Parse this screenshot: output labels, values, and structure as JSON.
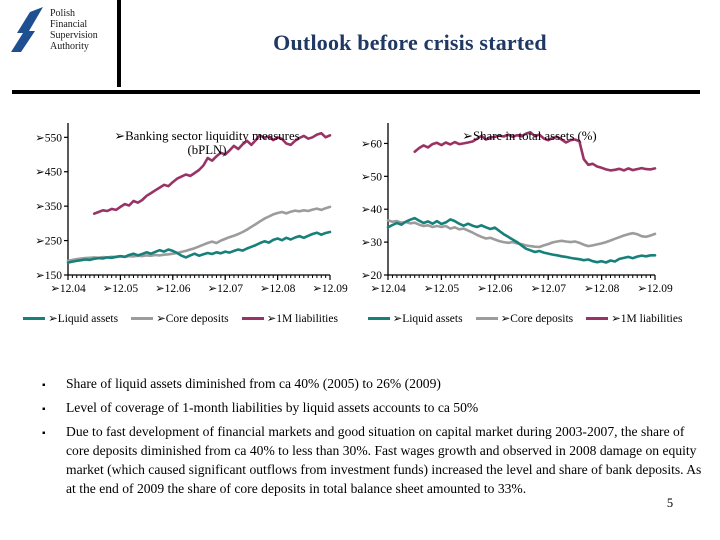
{
  "header": {
    "logo_text": [
      "Polish",
      "Financial",
      "Supervision",
      "Authority"
    ],
    "title": "Outlook before crisis started",
    "title_color": "#1f3864",
    "logo_color": "#1d4f91"
  },
  "legend": {
    "items": [
      {
        "label": "➢Liquid assets",
        "color": "#17807a"
      },
      {
        "label": "➢Core deposits",
        "color": "#9c9c9c"
      },
      {
        "label": "➢1M liabilities",
        "color": "#993366"
      }
    ]
  },
  "bullets": [
    "Share of liquid assets diminished from ca 40% (2005) to 26% (2009)",
    "Level of coverage of 1-month liabilities by liquid assets accounts to ca 50%",
    "Due to fast development of financial markets and good situation on capital market during 2003-2007, the share of core deposits diminished from ca 40% to less than 30%. Fast wages growth and observed in 2008 damage on equity market (which caused significant outflows from investment funds)  increased the level and share of bank deposits. As at the end of 2009 the share of core deposits in total balance sheet amounted to 33%."
  ],
  "page_number": "5",
  "chart_data": [
    {
      "type": "line",
      "title": "➢Banking sector liquidity measures",
      "subtitle": "(bPLN)",
      "x_axis_note": "monthly data Dec 2004 - Dec 2009",
      "x_tick_labels": [
        "➢12.04",
        "➢12.05",
        "➢12.06",
        "➢12.07",
        "➢12.08",
        "➢12.09"
      ],
      "x_tick_positions": [
        0,
        12,
        24,
        36,
        48,
        60
      ],
      "x_count": 61,
      "ylim": [
        150,
        580
      ],
      "grid": false,
      "y_ticks": [
        {
          "v": 550,
          "label": "➢550"
        },
        {
          "v": 450,
          "label": "➢450"
        },
        {
          "v": 350,
          "label": "➢350"
        },
        {
          "v": 250,
          "label": "➢250"
        },
        {
          "v": 150,
          "label": "➢150"
        }
      ],
      "series": [
        {
          "name": "Core deposits",
          "color": "#9c9c9c",
          "values": [
            191,
            194,
            196,
            198,
            199,
            200,
            201,
            200,
            202,
            201,
            203,
            202,
            204,
            203,
            205,
            204,
            206,
            205,
            207,
            206,
            208,
            207,
            209,
            210,
            212,
            214,
            217,
            220,
            224,
            228,
            233,
            238,
            243,
            247,
            243,
            250,
            255,
            260,
            264,
            269,
            275,
            282,
            290,
            298,
            306,
            314,
            320,
            326,
            330,
            333,
            329,
            334,
            337,
            335,
            338,
            336,
            340,
            343,
            339,
            344,
            348
          ]
        },
        {
          "name": "Liquid assets",
          "color": "#17807a",
          "values": [
            186,
            189,
            191,
            193,
            195,
            194,
            197,
            199,
            198,
            201,
            200,
            203,
            205,
            203,
            208,
            212,
            207,
            211,
            216,
            212,
            217,
            222,
            218,
            224,
            220,
            214,
            206,
            201,
            207,
            212,
            206,
            210,
            214,
            211,
            216,
            213,
            218,
            215,
            220,
            224,
            221,
            227,
            232,
            237,
            243,
            248,
            244,
            252,
            256,
            251,
            258,
            253,
            259,
            263,
            258,
            264,
            269,
            273,
            267,
            272,
            275
          ]
        },
        {
          "name": "1M liabilities",
          "color": "#993366",
          "values": [
            null,
            null,
            null,
            null,
            null,
            null,
            328,
            333,
            338,
            336,
            342,
            339,
            348,
            356,
            352,
            365,
            360,
            368,
            380,
            388,
            396,
            404,
            412,
            408,
            420,
            430,
            436,
            442,
            438,
            446,
            455,
            468,
            490,
            482,
            495,
            505,
            500,
            512,
            525,
            516,
            530,
            540,
            528,
            542,
            556,
            548,
            553,
            542,
            550,
            545,
            532,
            528,
            540,
            548,
            554,
            546,
            550,
            558,
            562,
            550,
            556
          ]
        }
      ]
    },
    {
      "type": "line",
      "title": "➢Share in total assets (%)",
      "subtitle": "",
      "x_axis_note": "monthly data Dec 2004 - Dec 2009",
      "x_tick_labels": [
        "➢12.04",
        "➢12.05",
        "➢12.06",
        "➢12.07",
        "➢12.08",
        "➢12.09"
      ],
      "x_tick_positions": [
        0,
        12,
        24,
        36,
        48,
        60
      ],
      "x_count": 61,
      "ylim": [
        20,
        65
      ],
      "grid": false,
      "y_ticks": [
        {
          "v": 60,
          "label": "➢60"
        },
        {
          "v": 50,
          "label": "➢50"
        },
        {
          "v": 40,
          "label": "➢40"
        },
        {
          "v": 30,
          "label": "➢30"
        },
        {
          "v": 20,
          "label": "➢20"
        }
      ],
      "series": [
        {
          "name": "Core deposits",
          "color": "#9c9c9c",
          "values": [
            36.6,
            36.2,
            36.4,
            35.9,
            36.1,
            35.7,
            35.9,
            35.3,
            34.9,
            35.1,
            34.6,
            34.9,
            34.6,
            34.9,
            34.1,
            34.5,
            33.9,
            34.1,
            33.5,
            32.9,
            32.2,
            31.6,
            31.1,
            31.3,
            30.8,
            30.3,
            30.0,
            29.8,
            30.0,
            29.6,
            29.4,
            29.0,
            28.8,
            28.6,
            28.5,
            29.0,
            29.4,
            29.9,
            30.2,
            30.4,
            30.2,
            30.0,
            30.2,
            29.8,
            29.2,
            28.8,
            29.0,
            29.3,
            29.6,
            30.0,
            30.5,
            31.0,
            31.5,
            32.0,
            32.4,
            32.7,
            32.4,
            31.8,
            31.6,
            32.0,
            32.5
          ]
        },
        {
          "name": "Liquid assets",
          "color": "#17807a",
          "values": [
            34.5,
            35.2,
            35.8,
            35.3,
            36.2,
            36.8,
            37.3,
            36.5,
            35.8,
            36.3,
            35.6,
            36.4,
            35.5,
            36.0,
            36.9,
            36.4,
            35.6,
            35.0,
            35.6,
            35.0,
            34.6,
            35.1,
            34.5,
            34.0,
            34.4,
            33.4,
            32.4,
            31.6,
            30.8,
            30.0,
            29.0,
            28.0,
            27.5,
            27.0,
            27.3,
            26.8,
            26.5,
            26.2,
            26.0,
            25.7,
            25.5,
            25.2,
            25.0,
            24.8,
            24.5,
            24.7,
            24.2,
            23.9,
            24.2,
            23.8,
            24.4,
            24.1,
            24.9,
            25.2,
            25.5,
            25.1,
            25.6,
            25.9,
            25.7,
            26.0,
            26.0
          ]
        },
        {
          "name": "1M liabilities",
          "color": "#993366",
          "values": [
            null,
            null,
            null,
            null,
            null,
            null,
            57.5,
            58.6,
            59.4,
            58.8,
            59.8,
            60.2,
            59.5,
            60.3,
            59.7,
            60.4,
            59.8,
            60.0,
            60.3,
            60.6,
            61.4,
            62.3,
            61.2,
            61.8,
            62.0,
            62.4,
            62.1,
            62.7,
            62.0,
            62.5,
            62.2,
            63.0,
            63.4,
            62.2,
            62.7,
            61.5,
            61.0,
            61.7,
            62.0,
            61.2,
            60.3,
            61.0,
            61.2,
            60.7,
            55.2,
            53.5,
            53.8,
            53.0,
            52.6,
            52.1,
            51.8,
            52.0,
            52.3,
            51.8,
            52.4,
            51.9,
            52.2,
            52.5,
            52.2,
            52.1,
            52.4
          ]
        }
      ]
    }
  ]
}
